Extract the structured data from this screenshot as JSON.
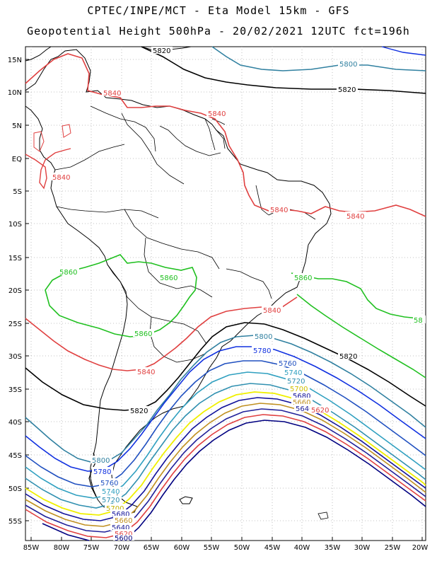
{
  "title_line1": "CPTEC/INPE/MCT -  Eta Model 15km - GFS",
  "title_line2": "Geopotential Height 500hPa - 20/02/2021 12UTC fct=196h",
  "lat_labels": [
    "15N",
    "10N",
    "5N",
    "EQ",
    "5S",
    "10S",
    "15S",
    "20S",
    "25S",
    "30S",
    "35S",
    "40S",
    "45S",
    "50S",
    "55S"
  ],
  "lon_labels": [
    "85W",
    "80W",
    "75W",
    "70W",
    "65W",
    "60W",
    "55W",
    "50W",
    "45W",
    "40W",
    "35W",
    "30W",
    "25W",
    "20W"
  ],
  "colors": {
    "c5560": "#000080",
    "c5580": "#dc2020",
    "c5600": "#d4a017",
    "c5620": "#20209a",
    "c5640": "#c09020",
    "c5660": "#f0f000",
    "c5680": "#10109a",
    "c5700": "#3090b0",
    "c5720": "#2050c0",
    "c5740": "#30a0c0",
    "c5760": "#1030e0",
    "c5800": "#3080a0",
    "c5820": "#000000",
    "c5840": "#e04040",
    "c5860": "#20c020",
    "coast": "#000000",
    "grid": "#b0b0b0"
  },
  "contours": [
    {
      "value": "5800",
      "label": "5800"
    },
    {
      "value": "5820",
      "label": "5820"
    },
    {
      "value": "5840",
      "label": "5840"
    },
    {
      "value": "5860",
      "label": "5860"
    },
    {
      "value": "5780",
      "label": "5780"
    },
    {
      "value": "5760",
      "label": "5760"
    },
    {
      "value": "5740",
      "label": "5740"
    },
    {
      "value": "5720",
      "label": "5720"
    },
    {
      "value": "5700",
      "label": "5700"
    },
    {
      "value": "5680",
      "label": "5680"
    },
    {
      "value": "5660",
      "label": "5660"
    },
    {
      "value": "5640",
      "label": "5640"
    },
    {
      "value": "5620",
      "label": "5620"
    },
    {
      "value": "5600",
      "label": "5600"
    }
  ]
}
